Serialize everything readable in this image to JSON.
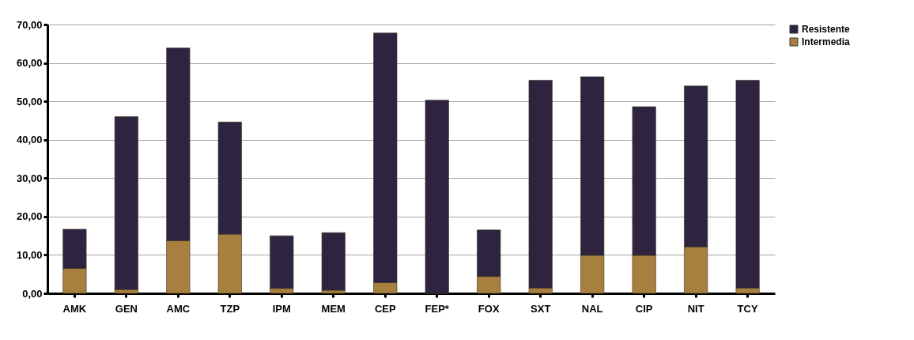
{
  "chart_data": {
    "type": "bar",
    "stacked": true,
    "categories": [
      "AMK",
      "GEN",
      "AMC",
      "TZP",
      "IPM",
      "MEM",
      "CEP",
      "FEP*",
      "FOX",
      "SXT",
      "NAL",
      "CIP",
      "NIT",
      "TCY"
    ],
    "series": [
      {
        "name": "Intermedia",
        "color": "#a7803f",
        "values": [
          6.5,
          1.0,
          13.7,
          15.4,
          1.3,
          0.8,
          2.8,
          0,
          4.4,
          1.4,
          9.9,
          9.9,
          12.1,
          1.4
        ]
      },
      {
        "name": "Resistente",
        "color": "#2e2440",
        "values": [
          10.2,
          45.0,
          50.2,
          29.2,
          13.7,
          15.0,
          65.0,
          50.3,
          12.1,
          54.1,
          46.5,
          38.7,
          41.9,
          54.1
        ]
      }
    ],
    "ylim": [
      0,
      70
    ],
    "yticks": [
      {
        "value": 0,
        "label": "0,00"
      },
      {
        "value": 10,
        "label": "10,00"
      },
      {
        "value": 20,
        "label": "20,00"
      },
      {
        "value": 30,
        "label": "30,00"
      },
      {
        "value": 40,
        "label": "40,00"
      },
      {
        "value": 50,
        "label": "50,00"
      },
      {
        "value": 60,
        "label": "60,00"
      },
      {
        "value": 70,
        "label": "70,00"
      }
    ],
    "grid": "y",
    "legend": "right"
  }
}
